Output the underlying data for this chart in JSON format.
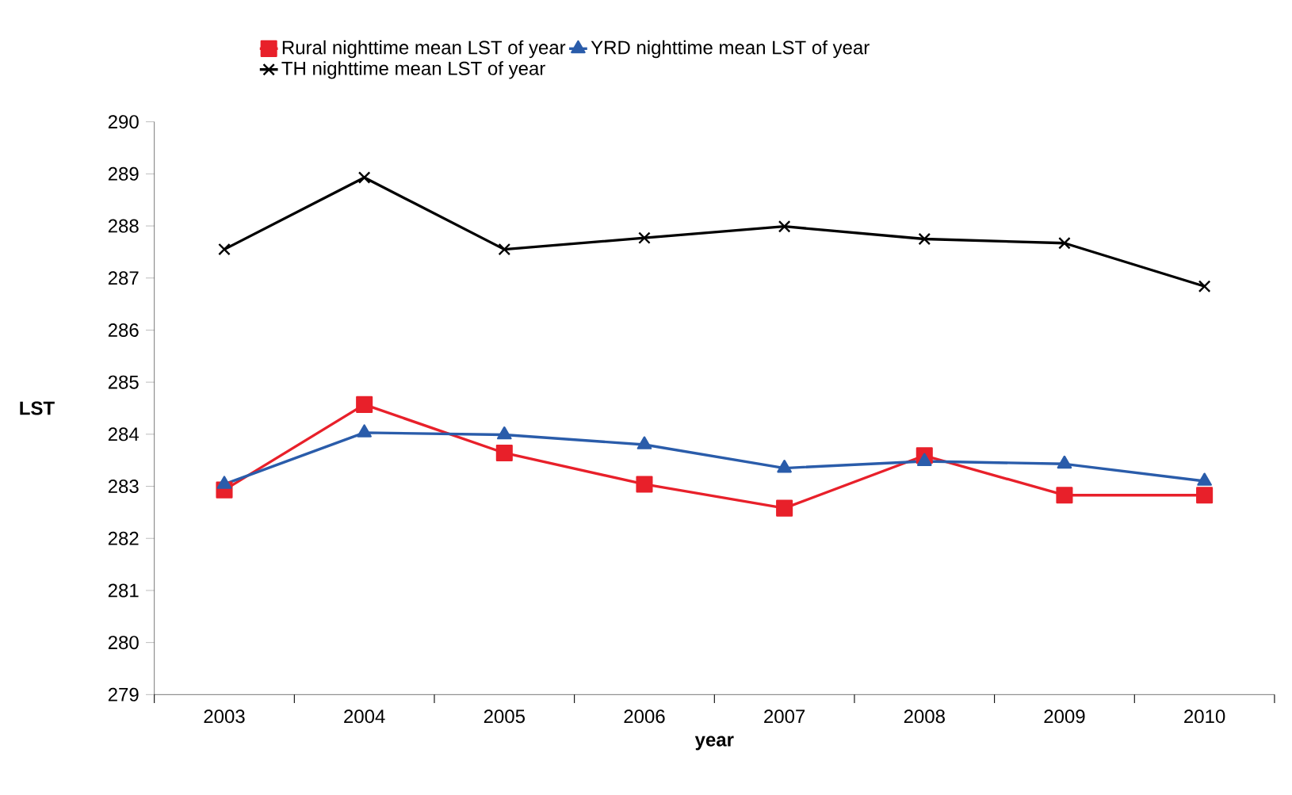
{
  "chart_data": {
    "type": "line",
    "xlabel": "year",
    "ylabel": "LST",
    "categories": [
      "2003",
      "2004",
      "2005",
      "2006",
      "2007",
      "2008",
      "2009",
      "2010"
    ],
    "series": [
      {
        "name": "Rural nighttime mean LST of year",
        "color": "#e8202a",
        "marker": "square",
        "values": [
          282.93,
          284.57,
          283.64,
          283.04,
          282.58,
          283.59,
          282.83,
          282.83
        ]
      },
      {
        "name": "YRD nighttime mean LST of year",
        "color": "#2a5caa",
        "marker": "triangle",
        "values": [
          283.04,
          284.03,
          283.99,
          283.8,
          283.35,
          283.48,
          283.43,
          283.1
        ]
      },
      {
        "name": "TH nighttime mean LST of year",
        "color": "#000000",
        "marker": "cross",
        "values": [
          287.55,
          288.93,
          287.55,
          287.77,
          287.99,
          287.75,
          287.67,
          286.84
        ]
      }
    ],
    "ylim": [
      279,
      290
    ],
    "yticks": [
      279,
      280,
      281,
      282,
      283,
      284,
      285,
      286,
      287,
      288,
      289,
      290
    ],
    "grid": false,
    "legend": "top"
  }
}
